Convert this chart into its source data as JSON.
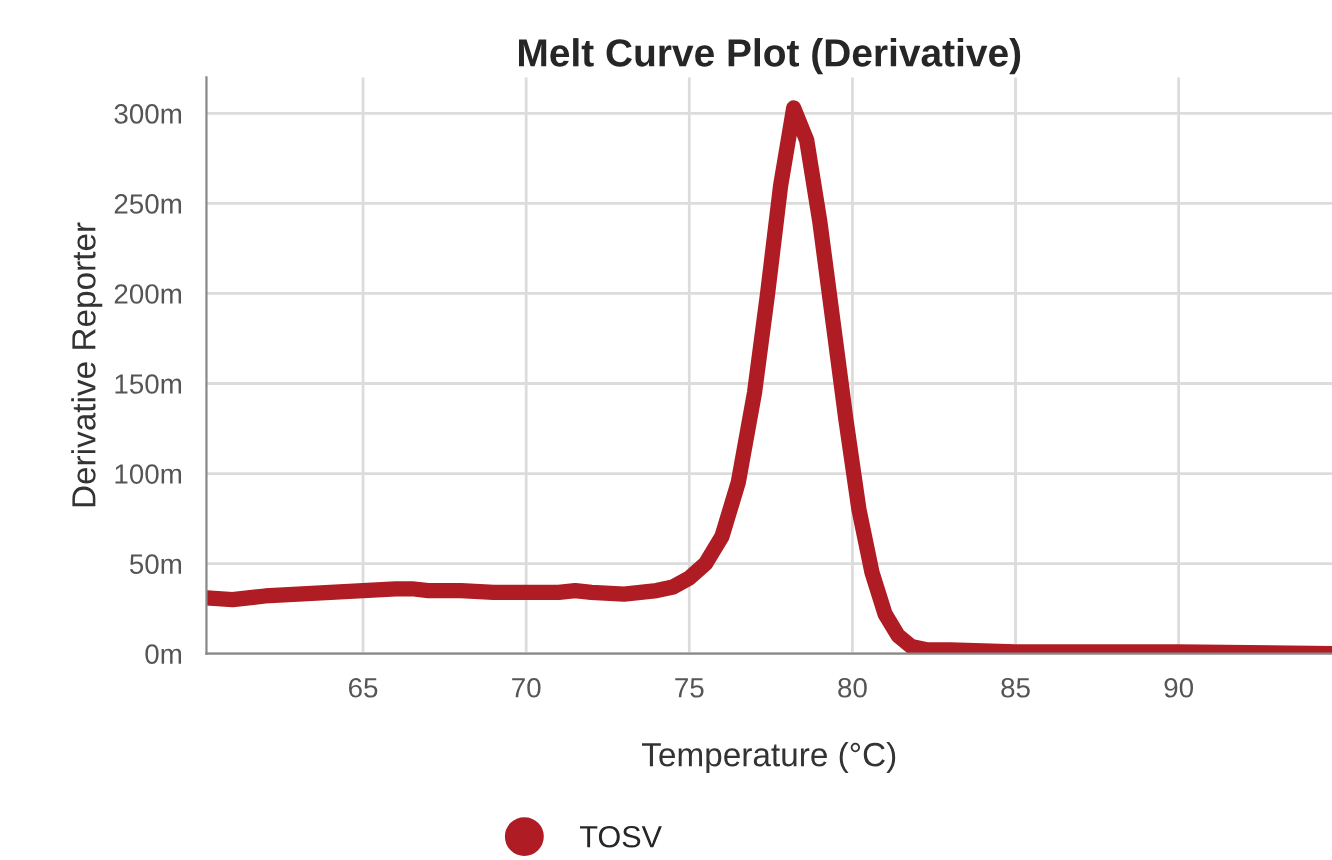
{
  "chart_data": {
    "type": "line",
    "title": "Melt Curve Plot (Derivative)",
    "xlabel": "Temperature (°C)",
    "ylabel": "Derivative Reporter",
    "xlim": [
      60.2,
      94.7
    ],
    "xticks": [
      65,
      70,
      75,
      80,
      85,
      90
    ],
    "ylim": [
      0,
      320
    ],
    "yticks": [
      {
        "value": 0,
        "label": "0m"
      },
      {
        "value": 50,
        "label": "50m"
      },
      {
        "value": 100,
        "label": "100m"
      },
      {
        "value": 150,
        "label": "150m"
      },
      {
        "value": 200,
        "label": "200m"
      },
      {
        "value": 250,
        "label": "250m"
      },
      {
        "value": 300,
        "label": "300m"
      }
    ],
    "grid": true,
    "legend": "bottom",
    "marker": "none",
    "line_style": "solid",
    "series": [
      {
        "name": "TOSV",
        "color": "#b01c24",
        "x": [
          60.2,
          61,
          62,
          63,
          64,
          65,
          66,
          66.5,
          67,
          68,
          69,
          70,
          71,
          71.5,
          72,
          73,
          74,
          74.5,
          75,
          75.5,
          76,
          76.5,
          77,
          77.4,
          77.8,
          78.2,
          78.6,
          79,
          79.4,
          79.8,
          80.2,
          80.6,
          81,
          81.4,
          81.8,
          82.3,
          83,
          85,
          88,
          90,
          94.7
        ],
        "values": [
          31,
          30,
          32,
          33,
          34,
          35,
          36,
          36,
          35,
          35,
          34,
          34,
          34,
          35,
          34,
          33,
          35,
          37,
          42,
          50,
          65,
          95,
          145,
          200,
          260,
          303,
          285,
          240,
          185,
          130,
          80,
          45,
          22,
          10,
          4,
          2,
          2,
          1,
          1,
          1,
          0
        ]
      }
    ]
  }
}
